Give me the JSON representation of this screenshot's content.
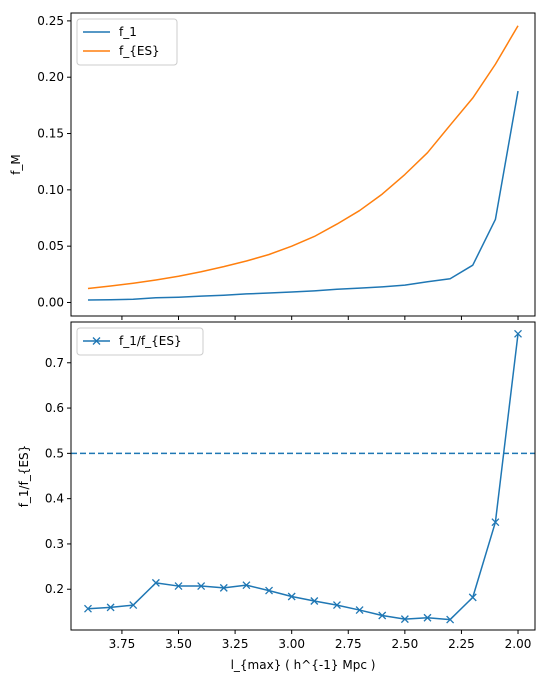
{
  "colors": {
    "series_1": "#1f77b4",
    "series_2": "#ff7f0e",
    "axis": "#000000",
    "legend_border": "#cccccc"
  },
  "chart_data": [
    {
      "type": "line",
      "ylabel": "f_M",
      "xlabel": "",
      "x_inverted": true,
      "xlim": [
        3.975,
        1.925
      ],
      "ylim": [
        -0.012,
        0.257
      ],
      "x_ticks": [
        3.75,
        3.5,
        3.25,
        3.0,
        2.75,
        2.5,
        2.25,
        2.0
      ],
      "x_tick_labels_visible": false,
      "y_ticks": [
        0.0,
        0.05,
        0.1,
        0.15,
        0.2,
        0.25
      ],
      "y_tick_labels": [
        "0.00",
        "0.05",
        "0.10",
        "0.15",
        "0.20",
        "0.25"
      ],
      "legend": "upper left",
      "x": [
        3.9,
        3.8,
        3.7,
        3.6,
        3.5,
        3.4,
        3.3,
        3.2,
        3.1,
        3.0,
        2.9,
        2.8,
        2.7,
        2.6,
        2.5,
        2.4,
        2.3,
        2.2,
        2.1,
        2.0
      ],
      "series": [
        {
          "name": "f_1",
          "color": "#1f77b4",
          "marker": "none",
          "values": [
            0.0022,
            0.0024,
            0.0029,
            0.0042,
            0.0047,
            0.0056,
            0.0064,
            0.0076,
            0.0084,
            0.0093,
            0.0103,
            0.0117,
            0.0127,
            0.0139,
            0.0154,
            0.0184,
            0.0211,
            0.0331,
            0.0737,
            0.1877
          ]
        },
        {
          "name": "f_{ES}",
          "color": "#ff7f0e",
          "marker": "none",
          "values": [
            0.0124,
            0.0146,
            0.0171,
            0.02,
            0.0233,
            0.0273,
            0.0318,
            0.0368,
            0.0426,
            0.05,
            0.0586,
            0.0696,
            0.0816,
            0.0962,
            0.1136,
            0.133,
            0.1574,
            0.1815,
            0.2115,
            0.2457
          ]
        }
      ]
    },
    {
      "type": "line",
      "ylabel": "f_1/f_{ES}",
      "xlabel": "l_{max} ( h^{-1} Mpc )",
      "x_inverted": true,
      "xlim": [
        3.975,
        1.925
      ],
      "ylim": [
        0.11,
        0.79
      ],
      "x_ticks": [
        3.75,
        3.5,
        3.25,
        3.0,
        2.75,
        2.5,
        2.25,
        2.0
      ],
      "x_tick_labels": [
        "3.75",
        "3.50",
        "3.25",
        "3.00",
        "2.75",
        "2.50",
        "2.25",
        "2.00"
      ],
      "y_ticks": [
        0.2,
        0.3,
        0.4,
        0.5,
        0.6,
        0.7
      ],
      "y_tick_labels": [
        "0.2",
        "0.3",
        "0.4",
        "0.5",
        "0.6",
        "0.7"
      ],
      "legend": "upper left",
      "hline": {
        "y": 0.5,
        "style": "dashed",
        "color": "#1f77b4"
      },
      "x": [
        3.9,
        3.8,
        3.7,
        3.6,
        3.5,
        3.4,
        3.3,
        3.2,
        3.1,
        3.0,
        2.9,
        2.8,
        2.7,
        2.6,
        2.5,
        2.4,
        2.3,
        2.2,
        2.1,
        2.0
      ],
      "series": [
        {
          "name": "f_1/f_{ES}",
          "color": "#1f77b4",
          "marker": "x",
          "values": [
            0.157,
            0.16,
            0.165,
            0.214,
            0.207,
            0.207,
            0.203,
            0.209,
            0.197,
            0.184,
            0.174,
            0.165,
            0.154,
            0.142,
            0.134,
            0.137,
            0.133,
            0.182,
            0.348,
            0.764
          ]
        }
      ]
    }
  ]
}
